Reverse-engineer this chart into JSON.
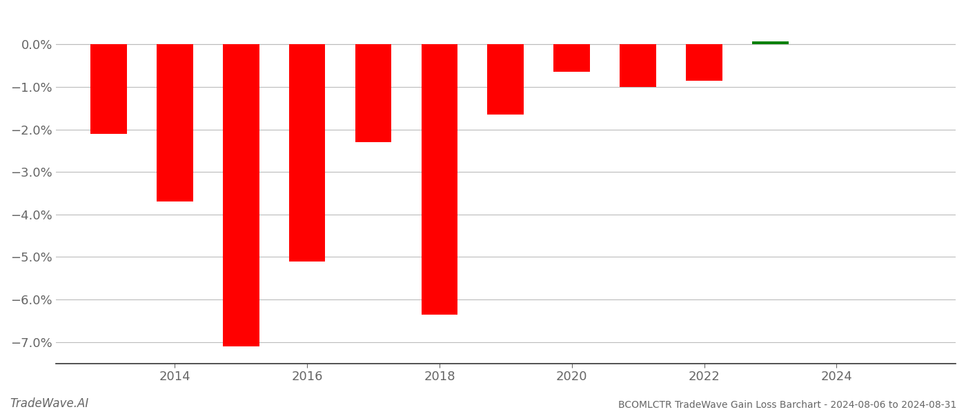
{
  "years": [
    2013,
    2014,
    2015,
    2016,
    2017,
    2018,
    2019,
    2020,
    2021,
    2022,
    2023,
    2024
  ],
  "values": [
    -0.021,
    -0.037,
    -0.071,
    -0.051,
    -0.023,
    -0.0635,
    -0.0165,
    -0.0065,
    -0.01,
    -0.0085,
    0.0007,
    0.0
  ],
  "bar_colors": [
    "red",
    "red",
    "red",
    "red",
    "red",
    "red",
    "red",
    "red",
    "red",
    "red",
    "green",
    "green"
  ],
  "title": "BCOMLCTR TradeWave Gain Loss Barchart - 2024-08-06 to 2024-08-31",
  "watermark": "TradeWave.AI",
  "ylim_min": -0.075,
  "ylim_max": 0.008,
  "background_color": "#ffffff",
  "grid_color": "#bbbbbb",
  "tick_color": "#666666",
  "bar_width": 0.55,
  "xlim_min": 2012.2,
  "xlim_max": 2025.8,
  "yticks": [
    0.0,
    -0.01,
    -0.02,
    -0.03,
    -0.04,
    -0.05,
    -0.06,
    -0.07
  ],
  "xticks": [
    2014,
    2016,
    2018,
    2020,
    2022,
    2024
  ]
}
